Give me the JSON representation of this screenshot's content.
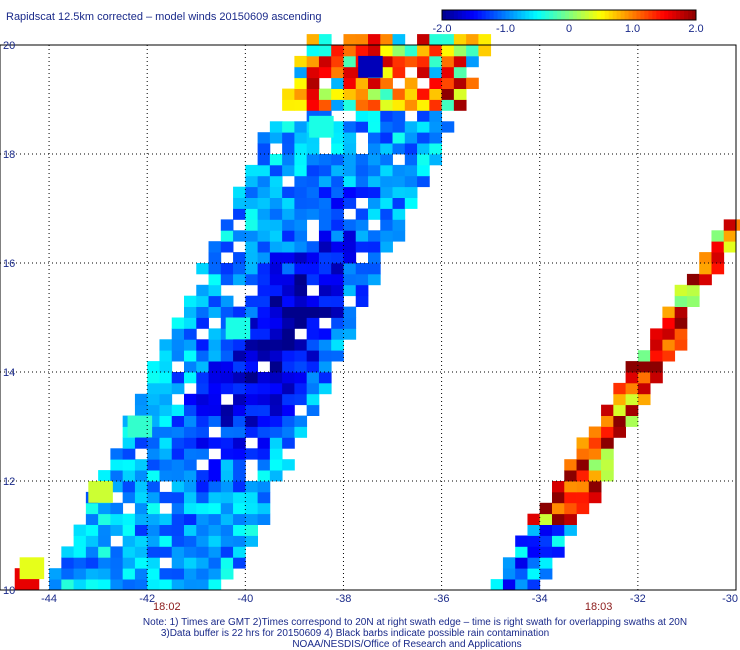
{
  "chart_data": {
    "type": "heatmap",
    "title": "Rapidscat 12.5km corrected – model winds 20150609 ascending",
    "xlim": [
      -45,
      -30
    ],
    "ylim": [
      10,
      20
    ],
    "x_ticks": [
      -44,
      -42,
      -40,
      -38,
      -36,
      -34,
      -32,
      -30
    ],
    "x_tick_labels": [
      "-44",
      "-42",
      "-40",
      "-38",
      "-36",
      "-34",
      "-32",
      "-30"
    ],
    "y_ticks": [
      10,
      12,
      14,
      16,
      18,
      20
    ],
    "y_tick_labels": [
      "10",
      "12",
      "14",
      "16",
      "18",
      "20"
    ],
    "grid": true,
    "colorbar": {
      "range": [
        -2.0,
        2.0
      ],
      "tick_values": [
        -2.0,
        -1.0,
        0,
        1.0,
        2.0
      ],
      "tick_labels": [
        "-2.0",
        "-1.0",
        "0",
        "1.0",
        "2.0"
      ],
      "colors": [
        "#00008b",
        "#0000ff",
        "#0080ff",
        "#00ffff",
        "#80ff80",
        "#ffff00",
        "#ff8000",
        "#ff0000",
        "#8b0000"
      ]
    },
    "swaths": [
      {
        "time": "18:02",
        "time_lon": -41.6,
        "edge_near_10N": [
          -44,
          -40.5
        ],
        "edge_near_20N": [
          -38.7,
          -35.0
        ],
        "dominant_range": [
          -2.0,
          -0.2
        ],
        "north_end_range": [
          0.5,
          2.0
        ]
      },
      {
        "time": "18:03",
        "time_lon": -32.8,
        "edge_near_10N": [
          -35.0,
          -34.0
        ],
        "edge_near_16_5N": [
          -30.3,
          -30.0
        ],
        "dominant_range": [
          1.0,
          2.0
        ],
        "south_end_range": [
          -2.0,
          -0.5
        ]
      }
    ],
    "annotations": [
      {
        "time": "18:02",
        "lon": -41.6
      },
      {
        "time": "18:03",
        "lon": -32.8
      }
    ]
  },
  "footer": {
    "line1": "Note: 1) Times are GMT 2)Times correspond to 20N at right swath edge – time is right swath for overlapping swaths at 20N",
    "line2": "3)Data buffer is 22 hrs for 20150609 4) Black barbs indicate possible rain contamination",
    "line3": "NOAA/NESDIS/Office of Research and Applications"
  }
}
